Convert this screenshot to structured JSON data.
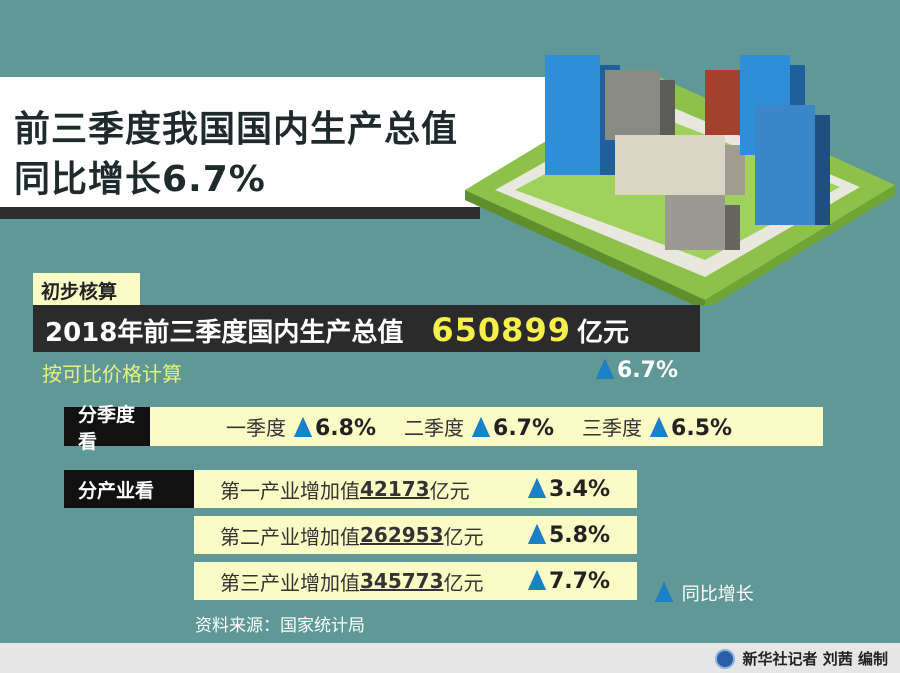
{
  "title": {
    "line1": "前三季度我国国内生产总值",
    "line2": "同比增长6.7%"
  },
  "tag": "初步核算",
  "gdp": {
    "label": "2018年前三季度国内生产总值",
    "value": "650899",
    "unit": "亿元",
    "note": "按可比价格计算",
    "growth": "6.7%"
  },
  "quarters": {
    "label": "分季度看",
    "items": [
      {
        "name": "一季度",
        "growth": "6.8%"
      },
      {
        "name": "二季度",
        "growth": "6.7%"
      },
      {
        "name": "三季度",
        "growth": "6.5%"
      }
    ]
  },
  "industries": {
    "label": "分产业看",
    "items": [
      {
        "prefix": "第一产业增加值",
        "value": "42173",
        "unit": "亿元",
        "growth": "3.4%"
      },
      {
        "prefix": "第二产业增加值",
        "value": "262953",
        "unit": "亿元",
        "growth": "5.8%"
      },
      {
        "prefix": "第三产业增加值",
        "value": "345773",
        "unit": "亿元",
        "growth": "7.7%"
      }
    ]
  },
  "legend": "同比增长",
  "source": "资料来源：国家统计局",
  "credit": "新华社记者 刘茜 编制",
  "colors": {
    "background": "#5f9896",
    "highlight": "#f6f04a",
    "cream": "#fbfbc6",
    "up_arrow": "#1a80c8"
  }
}
